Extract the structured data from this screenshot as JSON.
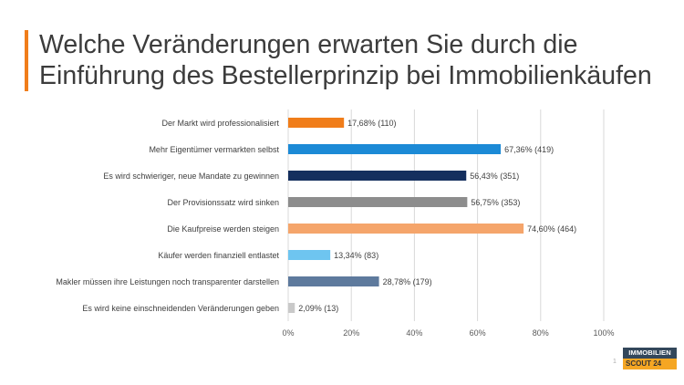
{
  "title": {
    "line1": "Welche Veränderungen erwarten Sie durch die",
    "line2": "Einführung des Bestellerprinzip bei Immobilienkäufen"
  },
  "chart_data": {
    "type": "bar",
    "orientation": "horizontal",
    "categories": [
      "Der Markt wird professionalisiert",
      "Mehr Eigentümer vermarkten selbst",
      "Es wird schwieriger, neue Mandate zu gewinnen",
      "Der Provisionssatz wird sinken",
      "Die Kaufpreise werden steigen",
      "Käufer werden finanziell entlastet",
      "Makler müssen ihre Leistungen noch transparenter darstellen",
      "Es wird keine einschneidenden Veränderungen geben"
    ],
    "values": [
      17.68,
      67.36,
      56.43,
      56.75,
      74.6,
      13.34,
      28.78,
      2.09
    ],
    "labels": [
      "17,68% (110)",
      "67,36% (419)",
      "56,43% (351)",
      "56,75% (353)",
      "74,60% (464)",
      "13,34% (83)",
      "28,78% (179)",
      "2,09% (13)"
    ],
    "colors": [
      "#f07d1a",
      "#1c8ad6",
      "#142f5e",
      "#8d8d8d",
      "#f5a56b",
      "#6ec5f0",
      "#5e7a9d",
      "#c9c9c9"
    ],
    "xlim": [
      0,
      100
    ],
    "xticks": [
      0,
      20,
      40,
      60,
      80,
      100
    ],
    "xtick_labels": [
      "0%",
      "20%",
      "40%",
      "60%",
      "80%",
      "100%"
    ],
    "grid": "vertical",
    "legend": "none"
  },
  "logo": {
    "line1": "IMMOBILIEN",
    "line2": "SCOUT 24"
  },
  "slide_mark": "1"
}
